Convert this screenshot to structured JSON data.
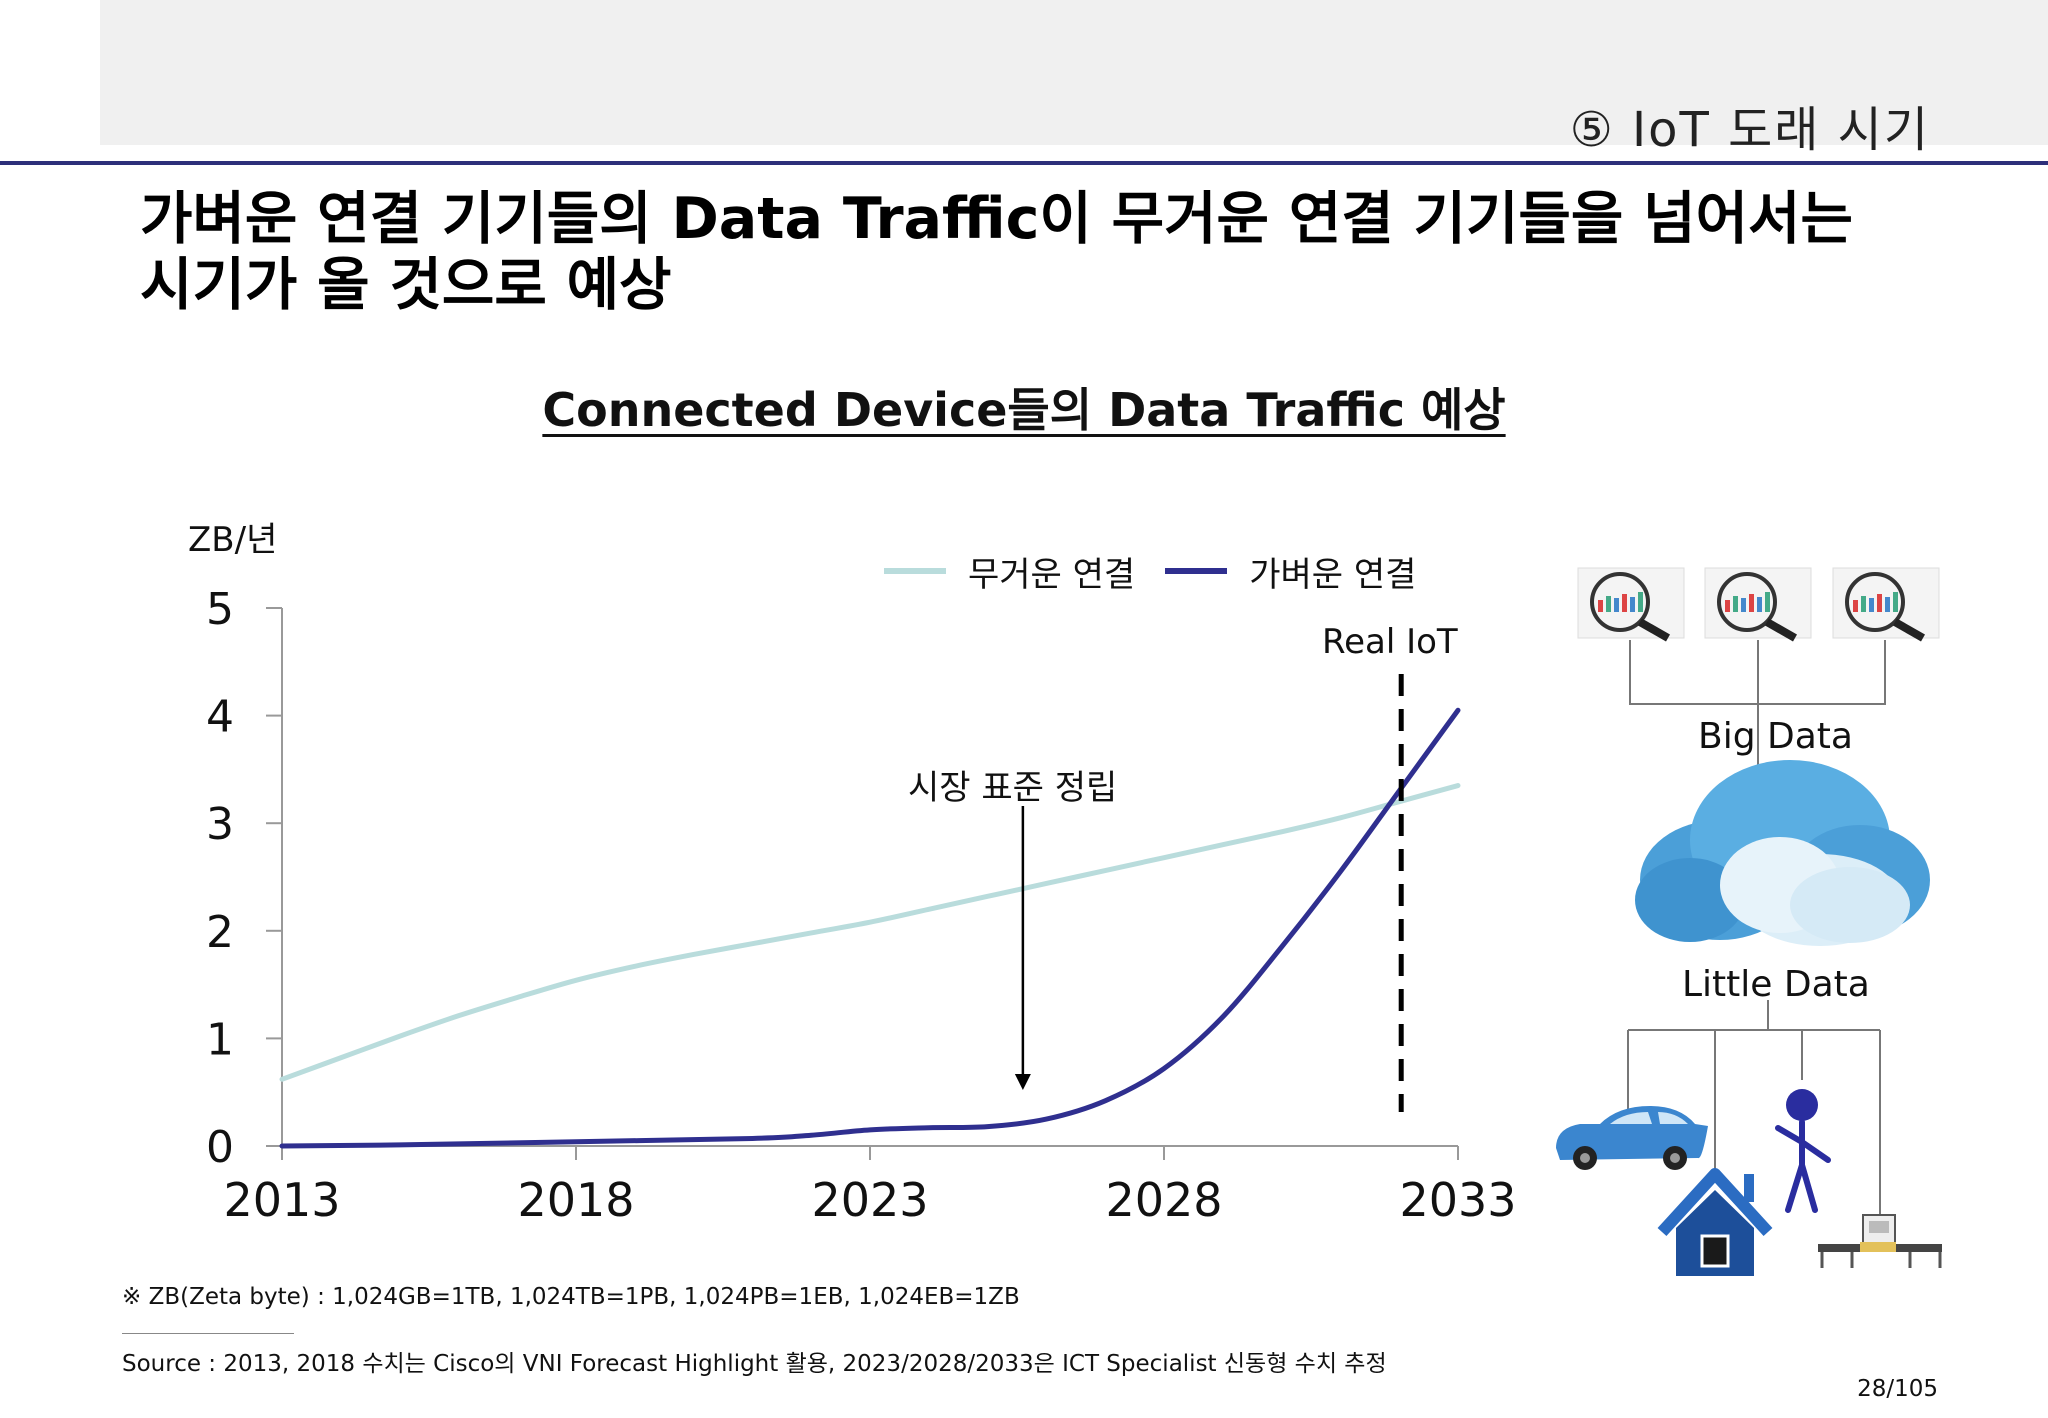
{
  "header": {
    "section": "⑤ IoT 도래 시기",
    "headline_line1": "가벼운 연결 기기들의 Data Traffic이 무거운 연결 기기들을 넘어서는",
    "headline_line2": "시기가 올 것으로 예상"
  },
  "chart_data": {
    "type": "line",
    "title": "Connected Device들의 Data Traffic 예상",
    "xlabel": "",
    "ylabel": "ZB/년",
    "x_ticks": [
      "2013",
      "2018",
      "2023",
      "2028",
      "2033"
    ],
    "y_ticks": [
      "0",
      "1",
      "2",
      "3",
      "4",
      "5"
    ],
    "xlim": [
      2013,
      2033
    ],
    "ylim": [
      0,
      5
    ],
    "grid": false,
    "legend_position": "top",
    "series": [
      {
        "name": "무거운 연결",
        "color": "#b9dcdc",
        "points": [
          [
            2013,
            0.62
          ],
          [
            2014,
            0.82
          ],
          [
            2015,
            1.02
          ],
          [
            2016,
            1.21
          ],
          [
            2017,
            1.38
          ],
          [
            2018,
            1.54
          ],
          [
            2019,
            1.67
          ],
          [
            2020,
            1.78
          ],
          [
            2021,
            1.88
          ],
          [
            2022,
            1.98
          ],
          [
            2023,
            2.08
          ],
          [
            2024,
            2.2
          ],
          [
            2025,
            2.32
          ],
          [
            2026,
            2.44
          ],
          [
            2027,
            2.56
          ],
          [
            2028,
            2.68
          ],
          [
            2029,
            2.8
          ],
          [
            2030,
            2.92
          ],
          [
            2031,
            3.05
          ],
          [
            2032,
            3.2
          ],
          [
            2033,
            3.35
          ]
        ]
      },
      {
        "name": "가벼운 연결",
        "color": "#2f2f8f",
        "points": [
          [
            2013,
            0
          ],
          [
            2015,
            0.01
          ],
          [
            2018,
            0.04
          ],
          [
            2021,
            0.07
          ],
          [
            2022,
            0.1
          ],
          [
            2023,
            0.15
          ],
          [
            2024,
            0.17
          ],
          [
            2025,
            0.18
          ],
          [
            2026,
            0.25
          ],
          [
            2027,
            0.42
          ],
          [
            2028,
            0.72
          ],
          [
            2029,
            1.2
          ],
          [
            2030,
            1.85
          ],
          [
            2031,
            2.55
          ],
          [
            2032,
            3.3
          ],
          [
            2033,
            4.05
          ]
        ]
      }
    ],
    "annotations": [
      {
        "text": "시장 표준 정립",
        "x": 2025.6,
        "kind": "arrow"
      },
      {
        "text": "Real IoT",
        "x": 2032,
        "kind": "dashed-line"
      }
    ]
  },
  "side": {
    "big_data": "Big Data",
    "little_data": "Little Data",
    "icons": [
      "magnifier-chart-icon",
      "cloud-icon",
      "car-icon",
      "person-icon",
      "house-icon",
      "machine-icon"
    ]
  },
  "footer": {
    "note": "※ ZB(Zeta byte) : 1,024GB=1TB, 1,024TB=1PB, 1,024PB=1EB, 1,024EB=1ZB",
    "source": "Source : 2013, 2018 수치는 Cisco의 VNI Forecast Highlight 활용, 2023/2028/2033은 ICT Specialist 신동형 수치 추정",
    "page": "28/105"
  }
}
